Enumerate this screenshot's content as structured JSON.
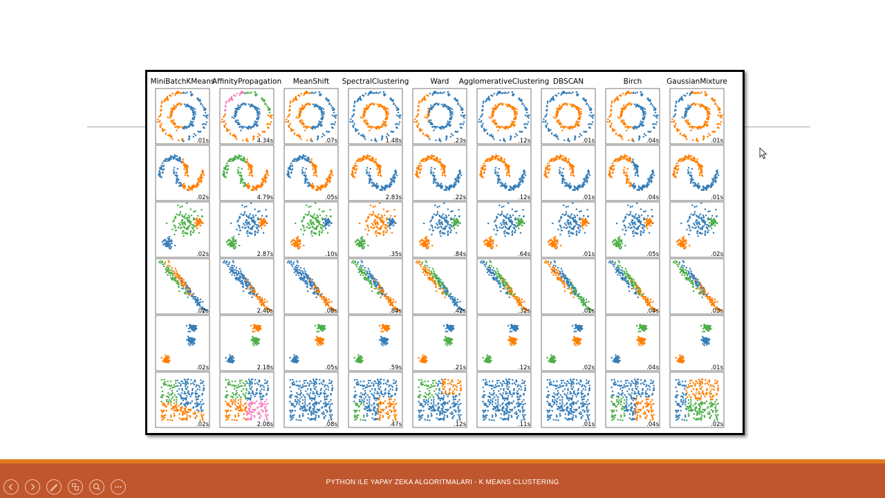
{
  "slide": {
    "footer_text": "PYTHON ILE YAPAY ZEKA ALGORITMALARI - K MEANS CLUSTERING"
  },
  "nav_controls": [
    {
      "name": "previous-slide-button",
      "icon": "chevron-left-icon"
    },
    {
      "name": "next-slide-button",
      "icon": "chevron-right-icon"
    },
    {
      "name": "pen-tool-button",
      "icon": "pen-icon"
    },
    {
      "name": "slide-sorter-button",
      "icon": "slides-icon"
    },
    {
      "name": "zoom-button",
      "icon": "magnifier-icon"
    },
    {
      "name": "more-options-button",
      "icon": "ellipsis-icon"
    }
  ],
  "colors": {
    "blue": "#377eb8",
    "orange": "#ff7f00",
    "green": "#4daf4a",
    "pink": "#f781bf",
    "bar": "#c0562d",
    "bar_top": "#e07a1f"
  },
  "figure": {
    "algorithms": [
      "MiniBatchKMeans",
      "AffinityPropagation",
      "MeanShift",
      "SpectralClustering",
      "Ward",
      "AgglomerativeClustering",
      "DBSCAN",
      "Birch",
      "GaussianMixture"
    ],
    "datasets": [
      "noisy-circles",
      "noisy-moons",
      "varied-blobs",
      "anisotropic-blobs",
      "blobs",
      "no-structure"
    ],
    "times": [
      [
        ".01s",
        "4.34s",
        ".07s",
        "1.48s",
        ".23s",
        ".12s",
        ".01s",
        ".04s",
        ".01s"
      ],
      [
        ".02s",
        "4.79s",
        ".05s",
        "2.83s",
        ".22s",
        ".12s",
        ".01s",
        ".04s",
        ".01s"
      ],
      [
        ".02s",
        "2.87s",
        ".10s",
        ".35s",
        ".84s",
        ".64s",
        ".01s",
        ".05s",
        ".02s"
      ],
      [
        ".02s",
        "2.40s",
        ".08s",
        ".84s",
        ".42s",
        ".32s",
        ".01s",
        ".04s",
        ".03s"
      ],
      [
        ".02s",
        "2.18s",
        ".05s",
        ".59s",
        ".21s",
        ".12s",
        ".02s",
        ".04s",
        ".01s"
      ],
      [
        ".02s",
        "2.08s",
        ".08s",
        ".47s",
        ".12s",
        ".11s",
        ".01s",
        ".04s",
        ".02s"
      ]
    ]
  }
}
